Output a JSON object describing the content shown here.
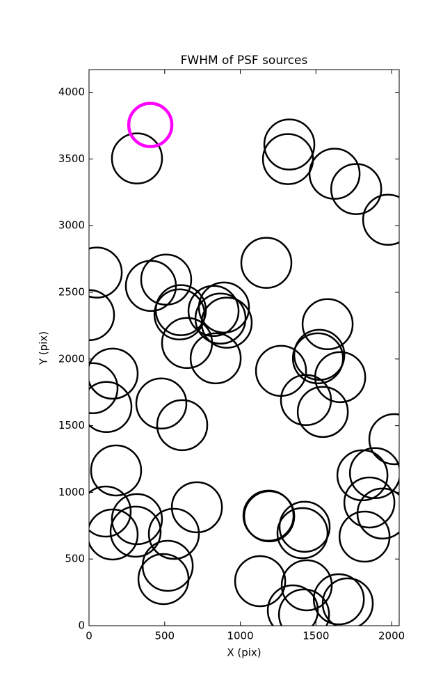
{
  "chart_data": {
    "type": "scatter",
    "title": "FWHM of PSF sources",
    "x_label": "X (pix)",
    "y_label": "Y (pix)",
    "xlim": [
      0,
      2050
    ],
    "ylim": [
      0,
      4170
    ],
    "xticks": [
      0,
      500,
      1000,
      1500,
      2000
    ],
    "yticks": [
      0,
      500,
      1000,
      1500,
      2000,
      2500,
      3000,
      3500,
      4000
    ],
    "series": [
      {
        "color": "#000000",
        "x": [
          317,
          1324,
          1315,
          1623,
          1766,
          1977,
          51,
          1172,
          510,
          409,
          0,
          607,
          598,
          823,
          892,
          869,
          910,
          648,
          1577,
          837,
          156,
          1269,
          1522,
          1513,
          1660,
          23,
          115,
          478,
          1434,
          1545,
          616,
          2018,
          179,
          1807,
          1890,
          713,
          1853,
          110,
          317,
          1940,
          1186,
          1191,
          1425,
          308,
          561,
          1411,
          156,
          1821,
          520,
          492,
          1131,
          1439,
          1651,
          1710,
          1347,
          1421
        ],
        "y": [
          3504,
          3608,
          3499,
          3389,
          3274,
          3044,
          2648,
          2721,
          2595,
          2548,
          2329,
          2366,
          2334,
          2360,
          2386,
          2303,
          2272,
          2120,
          2261,
          2005,
          1890,
          1911,
          2031,
          2005,
          1864,
          1781,
          1640,
          1666,
          1692,
          1603,
          1504,
          1399,
          1164,
          1128,
          1144,
          888,
          924,
          856,
          799,
          841,
          825,
          820,
          742,
          705,
          689,
          694,
          684,
          668,
          449,
          350,
          334,
          303,
          198,
          167,
          115,
          84
        ]
      },
      {
        "color": "#ff00ff",
        "x": [
          405
        ],
        "y": [
          3755
        ]
      }
    ]
  }
}
